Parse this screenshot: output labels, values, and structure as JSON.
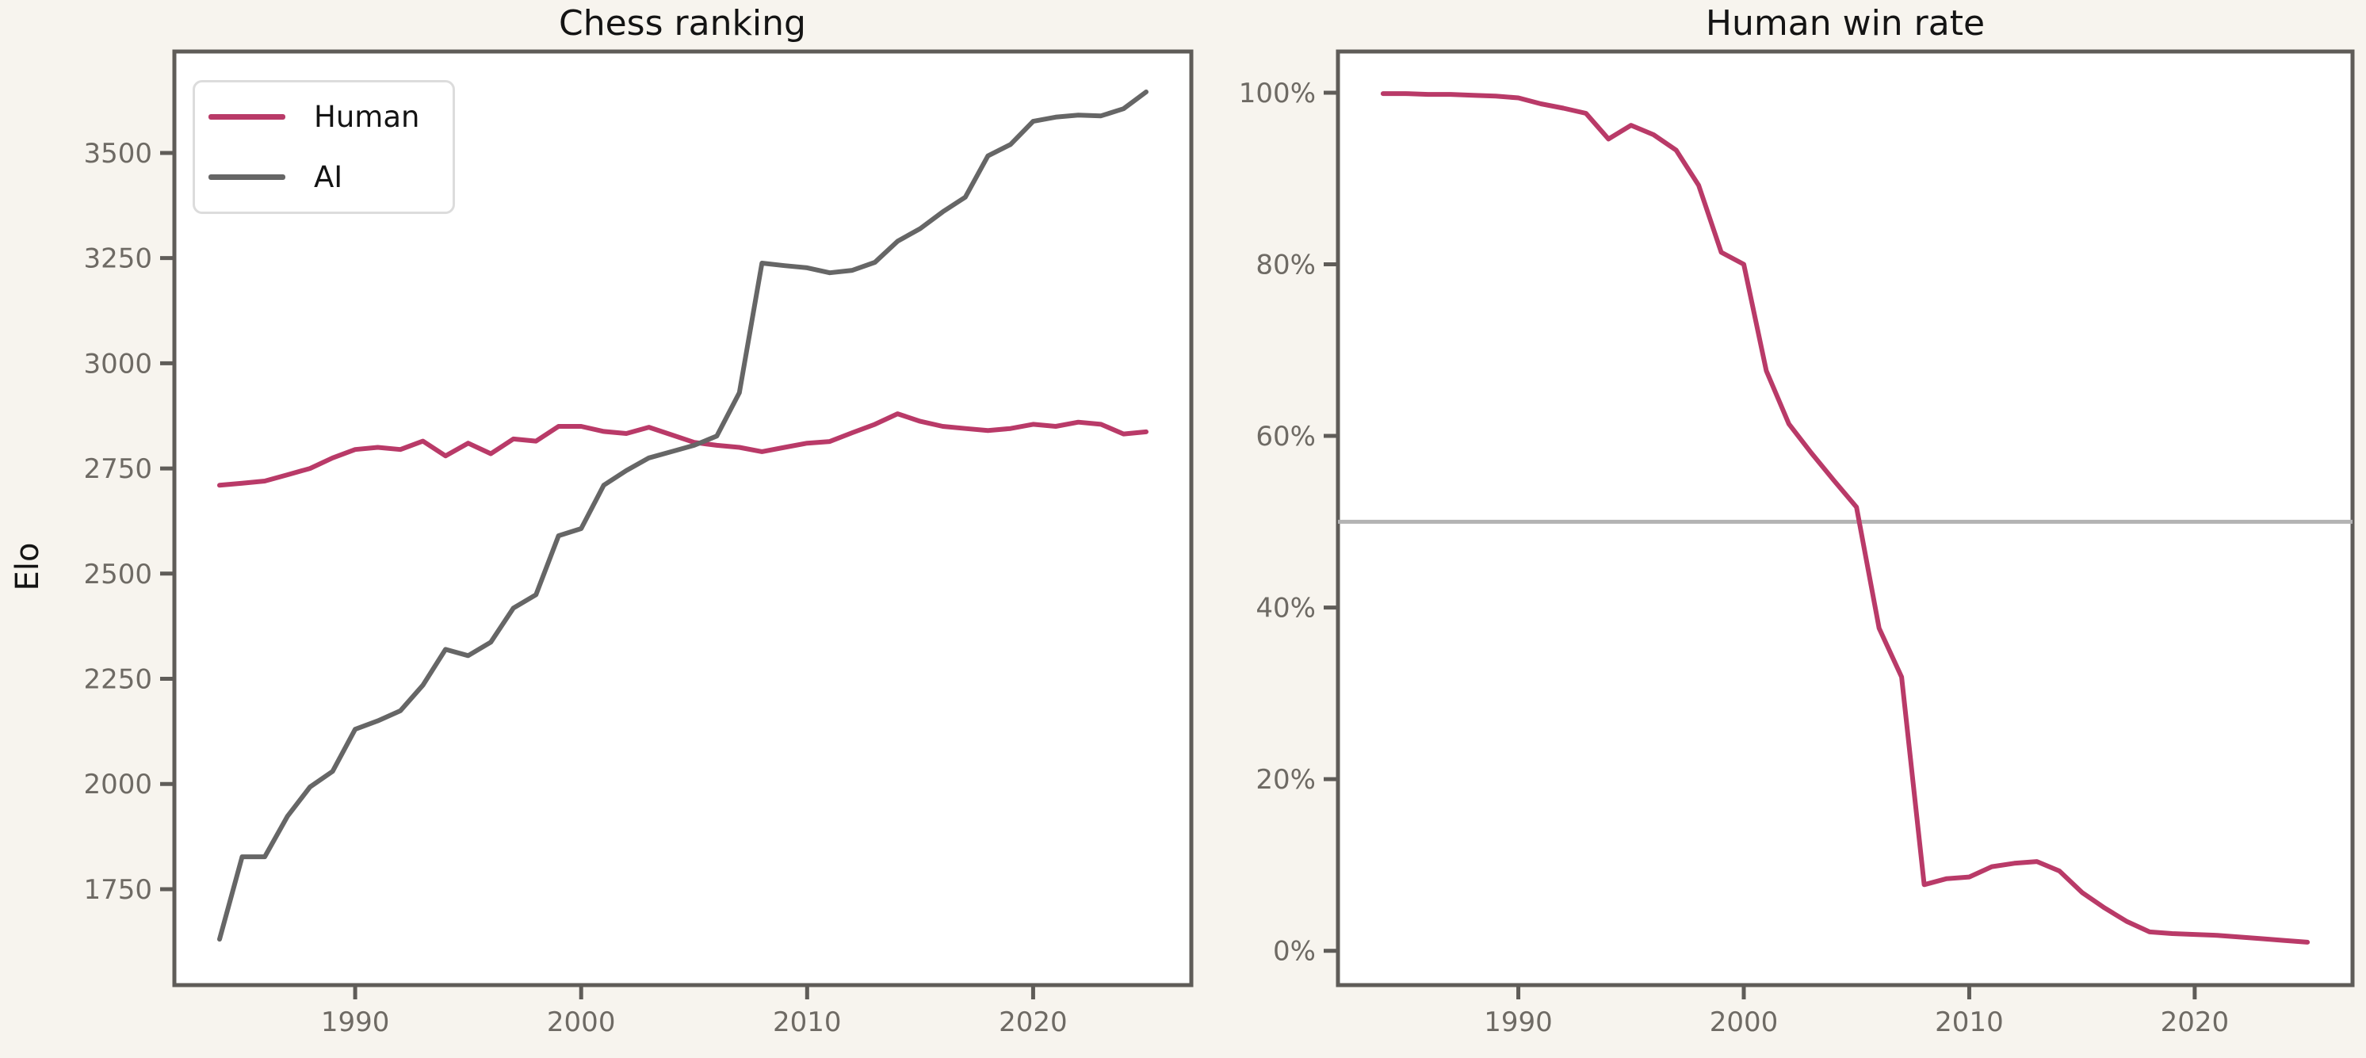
{
  "figure": {
    "background_color": "#f7f4ee",
    "panel_color": "#ffffff",
    "spine_color": "#5f5c58",
    "tick_label_color": "#6e6a64",
    "human_color": "#b93a68",
    "ai_color": "#666666",
    "reference_line_color": "#b3b3b3"
  },
  "legend": {
    "entries": [
      {
        "label": "Human",
        "color": "#b93a68"
      },
      {
        "label": "AI",
        "color": "#666666"
      }
    ]
  },
  "chart_data": [
    {
      "type": "line",
      "title": "Chess ranking",
      "xlabel": "",
      "ylabel": "Elo",
      "x_range": [
        1982,
        2027
      ],
      "y_range": [
        1522,
        3741
      ],
      "x_ticks": [
        1990,
        2000,
        2010,
        2020
      ],
      "y_ticks": [
        1750,
        2000,
        2250,
        2500,
        2750,
        3000,
        3250,
        3500
      ],
      "grid": false,
      "legend_position": "upper left",
      "x": [
        1984,
        1985,
        1986,
        1987,
        1988,
        1989,
        1990,
        1991,
        1992,
        1993,
        1994,
        1995,
        1996,
        1997,
        1998,
        1999,
        2000,
        2001,
        2002,
        2003,
        2004,
        2005,
        2006,
        2007,
        2008,
        2009,
        2010,
        2011,
        2012,
        2013,
        2014,
        2015,
        2016,
        2017,
        2018,
        2019,
        2020,
        2021,
        2022,
        2023,
        2024,
        2025
      ],
      "series": [
        {
          "name": "Human",
          "color": "#b93a68",
          "values": [
            2710,
            2715,
            2720,
            2735,
            2750,
            2775,
            2795,
            2800,
            2795,
            2815,
            2780,
            2810,
            2785,
            2820,
            2815,
            2850,
            2850,
            2838,
            2833,
            2848,
            2830,
            2812,
            2805,
            2800,
            2790,
            2800,
            2810,
            2814,
            2835,
            2855,
            2880,
            2862,
            2850,
            2845,
            2840,
            2845,
            2855,
            2850,
            2860,
            2855,
            2832,
            2837
          ]
        },
        {
          "name": "AI",
          "color": "#666666",
          "values": [
            1631,
            1827,
            1827,
            1923,
            1993,
            2030,
            2130,
            2150,
            2174,
            2235,
            2320,
            2305,
            2337,
            2418,
            2450,
            2590,
            2607,
            2710,
            2745,
            2775,
            2790,
            2805,
            2827,
            2930,
            3238,
            3232,
            3227,
            3215,
            3221,
            3240,
            3290,
            3320,
            3360,
            3395,
            3493,
            3520,
            3575,
            3585,
            3590,
            3588,
            3605,
            3645
          ]
        }
      ]
    },
    {
      "type": "line",
      "title": "Human win rate",
      "xlabel": "",
      "ylabel": "",
      "x_range": [
        1982,
        2027
      ],
      "y_range": [
        -4,
        104.8
      ],
      "x_ticks": [
        1990,
        2000,
        2010,
        2020
      ],
      "y_ticks": [
        0,
        20,
        40,
        60,
        80,
        100
      ],
      "y_tick_suffix": "%",
      "grid": false,
      "reference_line": {
        "value": 50,
        "color": "#b3b3b3"
      },
      "x": [
        1984,
        1985,
        1986,
        1987,
        1988,
        1989,
        1990,
        1991,
        1992,
        1993,
        1994,
        1995,
        1996,
        1997,
        1998,
        1999,
        2000,
        2001,
        2002,
        2003,
        2004,
        2005,
        2006,
        2007,
        2008,
        2009,
        2010,
        2011,
        2012,
        2013,
        2014,
        2015,
        2016,
        2017,
        2018,
        2019,
        2020,
        2021,
        2022,
        2023,
        2024,
        2025
      ],
      "series": [
        {
          "name": "Human win rate",
          "color": "#b93a68",
          "values": [
            99.9,
            99.9,
            99.8,
            99.8,
            99.7,
            99.6,
            99.4,
            98.7,
            98.2,
            97.6,
            94.6,
            96.2,
            95.1,
            93.3,
            89.2,
            81.4,
            80.0,
            67.6,
            61.4,
            58.0,
            54.8,
            51.7,
            37.6,
            31.9,
            7.7,
            8.4,
            8.6,
            9.8,
            10.2,
            10.4,
            9.3,
            6.8,
            5.0,
            3.4,
            2.2,
            2.0,
            1.9,
            1.8,
            1.6,
            1.4,
            1.2,
            1.0
          ]
        }
      ]
    }
  ]
}
